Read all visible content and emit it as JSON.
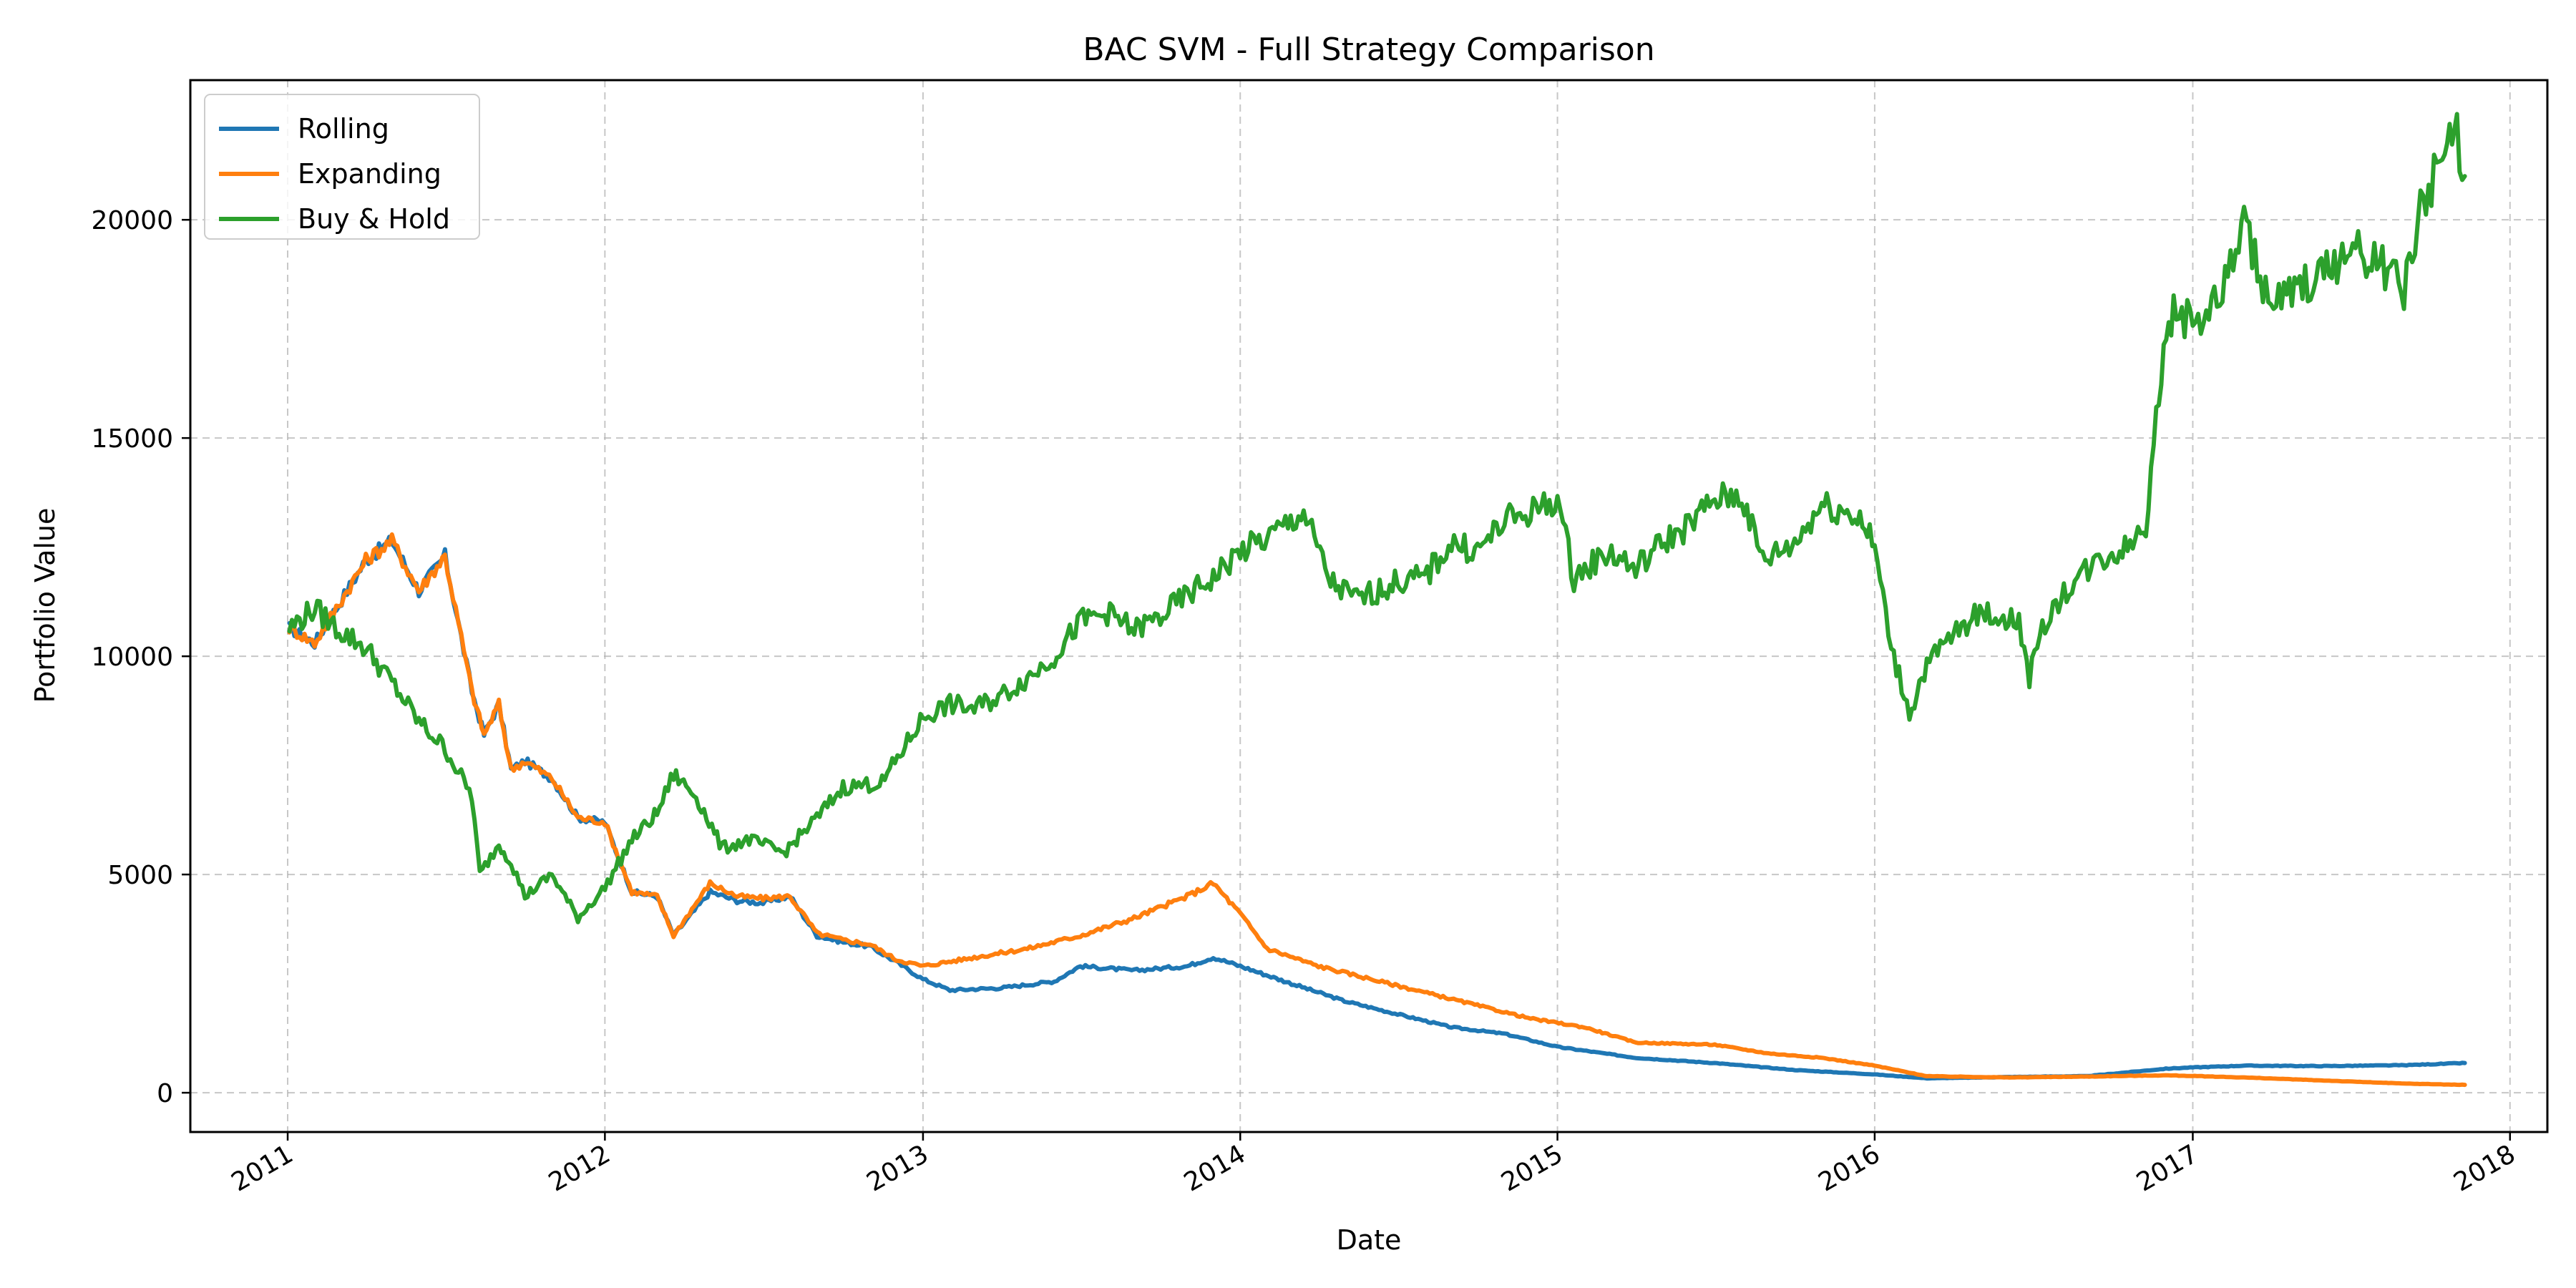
{
  "chart_data": {
    "type": "line",
    "title": "BAC SVM - Full Strategy Comparison",
    "xlabel": "Date",
    "ylabel": "Portfolio Value",
    "x_ticks": [
      "2011",
      "2012",
      "2013",
      "2014",
      "2015",
      "2016",
      "2017",
      "2018"
    ],
    "y_ticks": [
      0,
      5000,
      10000,
      15000,
      20000
    ],
    "xlim": [
      "2010-09-11",
      "2018-02-13"
    ],
    "ylim": [
      -900,
      23200
    ],
    "grid": true,
    "legend_position": "top-left",
    "series": [
      {
        "name": "Rolling",
        "color": "#1f77b4",
        "points": [
          [
            "2011-01-03",
            10650
          ],
          [
            "2011-02-01",
            10300
          ],
          [
            "2011-03-01",
            11200
          ],
          [
            "2011-04-01",
            12200
          ],
          [
            "2011-05-01",
            12650
          ],
          [
            "2011-06-01",
            11500
          ],
          [
            "2011-07-01",
            12300
          ],
          [
            "2011-08-01",
            9200
          ],
          [
            "2011-08-15",
            8200
          ],
          [
            "2011-09-01",
            8900
          ],
          [
            "2011-09-15",
            7400
          ],
          [
            "2011-10-01",
            7600
          ],
          [
            "2011-11-01",
            7200
          ],
          [
            "2011-12-01",
            6300
          ],
          [
            "2012-01-01",
            6200
          ],
          [
            "2012-02-01",
            4600
          ],
          [
            "2012-03-01",
            4500
          ],
          [
            "2012-03-20",
            3600
          ],
          [
            "2012-05-01",
            4600
          ],
          [
            "2012-06-01",
            4400
          ],
          [
            "2012-07-01",
            4350
          ],
          [
            "2012-08-01",
            4500
          ],
          [
            "2012-09-01",
            3600
          ],
          [
            "2012-10-01",
            3450
          ],
          [
            "2012-11-01",
            3350
          ],
          [
            "2012-12-01",
            3000
          ],
          [
            "2013-01-01",
            2600
          ],
          [
            "2013-02-01",
            2350
          ],
          [
            "2013-04-01",
            2400
          ],
          [
            "2013-06-01",
            2550
          ],
          [
            "2013-07-01",
            2900
          ],
          [
            "2013-09-01",
            2800
          ],
          [
            "2013-11-01",
            2900
          ],
          [
            "2013-12-01",
            3100
          ],
          [
            "2014-01-01",
            2900
          ],
          [
            "2014-03-01",
            2500
          ],
          [
            "2014-05-01",
            2100
          ],
          [
            "2014-07-01",
            1800
          ],
          [
            "2014-09-01",
            1500
          ],
          [
            "2014-11-01",
            1350
          ],
          [
            "2015-01-01",
            1050
          ],
          [
            "2015-04-01",
            800
          ],
          [
            "2015-07-01",
            680
          ],
          [
            "2015-10-01",
            520
          ],
          [
            "2016-01-01",
            420
          ],
          [
            "2016-03-01",
            330
          ],
          [
            "2016-06-01",
            360
          ],
          [
            "2016-09-01",
            380
          ],
          [
            "2016-12-01",
            550
          ],
          [
            "2017-01-01",
            580
          ],
          [
            "2017-03-01",
            620
          ],
          [
            "2017-06-01",
            610
          ],
          [
            "2017-09-01",
            630
          ],
          [
            "2017-11-10",
            680
          ]
        ]
      },
      {
        "name": "Expanding",
        "color": "#ff7f0e",
        "points": [
          [
            "2011-01-03",
            10650
          ],
          [
            "2011-02-01",
            10300
          ],
          [
            "2011-03-01",
            11200
          ],
          [
            "2011-04-01",
            12200
          ],
          [
            "2011-05-01",
            12650
          ],
          [
            "2011-06-01",
            11500
          ],
          [
            "2011-07-01",
            12300
          ],
          [
            "2011-08-01",
            9200
          ],
          [
            "2011-08-15",
            8200
          ],
          [
            "2011-09-01",
            8900
          ],
          [
            "2011-09-15",
            7400
          ],
          [
            "2011-10-01",
            7600
          ],
          [
            "2011-11-01",
            7200
          ],
          [
            "2011-12-01",
            6300
          ],
          [
            "2012-01-01",
            6200
          ],
          [
            "2012-02-01",
            4600
          ],
          [
            "2012-03-01",
            4500
          ],
          [
            "2012-03-20",
            3600
          ],
          [
            "2012-05-01",
            4800
          ],
          [
            "2012-06-01",
            4500
          ],
          [
            "2012-07-01",
            4450
          ],
          [
            "2012-08-01",
            4500
          ],
          [
            "2012-09-01",
            3650
          ],
          [
            "2012-10-01",
            3500
          ],
          [
            "2012-11-01",
            3400
          ],
          [
            "2012-12-01",
            3050
          ],
          [
            "2013-01-01",
            2900
          ],
          [
            "2013-03-01",
            3100
          ],
          [
            "2013-05-01",
            3300
          ],
          [
            "2013-07-01",
            3600
          ],
          [
            "2013-09-01",
            4000
          ],
          [
            "2013-11-01",
            4500
          ],
          [
            "2013-12-01",
            4800
          ],
          [
            "2014-01-01",
            4100
          ],
          [
            "2014-02-01",
            3300
          ],
          [
            "2014-04-01",
            2900
          ],
          [
            "2014-06-01",
            2600
          ],
          [
            "2014-08-01",
            2300
          ],
          [
            "2014-10-01",
            2000
          ],
          [
            "2014-12-01",
            1700
          ],
          [
            "2015-02-01",
            1500
          ],
          [
            "2015-04-01",
            1150
          ],
          [
            "2015-07-01",
            1100
          ],
          [
            "2015-09-01",
            900
          ],
          [
            "2015-11-01",
            800
          ],
          [
            "2016-01-01",
            620
          ],
          [
            "2016-03-01",
            380
          ],
          [
            "2016-06-01",
            350
          ],
          [
            "2016-09-01",
            370
          ],
          [
            "2016-12-01",
            400
          ],
          [
            "2017-03-01",
            350
          ],
          [
            "2017-06-01",
            280
          ],
          [
            "2017-09-01",
            210
          ],
          [
            "2017-11-10",
            180
          ]
        ]
      },
      {
        "name": "Buy & Hold",
        "color": "#2ca02c",
        "points": [
          [
            "2011-01-03",
            10650
          ],
          [
            "2011-02-01",
            11100
          ],
          [
            "2011-03-01",
            10600
          ],
          [
            "2011-04-01",
            10200
          ],
          [
            "2011-05-01",
            9400
          ],
          [
            "2011-06-01",
            8500
          ],
          [
            "2011-07-01",
            7900
          ],
          [
            "2011-08-01",
            6800
          ],
          [
            "2011-08-10",
            5000
          ],
          [
            "2011-09-01",
            5700
          ],
          [
            "2011-09-15",
            5300
          ],
          [
            "2011-10-01",
            4500
          ],
          [
            "2011-11-01",
            5000
          ],
          [
            "2011-12-01",
            4000
          ],
          [
            "2012-01-01",
            4700
          ],
          [
            "2012-02-01",
            5800
          ],
          [
            "2012-03-01",
            6400
          ],
          [
            "2012-03-20",
            7300
          ],
          [
            "2012-04-15",
            6800
          ],
          [
            "2012-05-15",
            5600
          ],
          [
            "2012-06-15",
            5800
          ],
          [
            "2012-07-25",
            5500
          ],
          [
            "2012-09-01",
            6300
          ],
          [
            "2012-10-01",
            7000
          ],
          [
            "2012-11-15",
            7100
          ],
          [
            "2013-01-01",
            8600
          ],
          [
            "2013-02-01",
            8900
          ],
          [
            "2013-03-01",
            8800
          ],
          [
            "2013-04-01",
            9100
          ],
          [
            "2013-05-01",
            9500
          ],
          [
            "2013-06-01",
            10000
          ],
          [
            "2013-07-01",
            10800
          ],
          [
            "2013-08-01",
            11000
          ],
          [
            "2013-09-01",
            10600
          ],
          [
            "2013-10-01",
            10900
          ],
          [
            "2013-11-01",
            11400
          ],
          [
            "2013-12-01",
            11800
          ],
          [
            "2014-01-01",
            12400
          ],
          [
            "2014-02-01",
            12700
          ],
          [
            "2014-03-15",
            13300
          ],
          [
            "2014-04-15",
            11700
          ],
          [
            "2014-05-15",
            11300
          ],
          [
            "2014-07-01",
            11700
          ],
          [
            "2014-08-01",
            11800
          ],
          [
            "2014-09-01",
            12600
          ],
          [
            "2014-10-01",
            12400
          ],
          [
            "2014-11-01",
            13100
          ],
          [
            "2014-12-01",
            13300
          ],
          [
            "2015-01-01",
            13600
          ],
          [
            "2015-01-20",
            11800
          ],
          [
            "2015-03-01",
            12400
          ],
          [
            "2015-04-01",
            12000
          ],
          [
            "2015-05-01",
            12600
          ],
          [
            "2015-06-01",
            13000
          ],
          [
            "2015-07-01",
            13600
          ],
          [
            "2015-08-01",
            13700
          ],
          [
            "2015-08-25",
            12200
          ],
          [
            "2015-10-01",
            12600
          ],
          [
            "2015-11-01",
            13500
          ],
          [
            "2015-12-15",
            13200
          ],
          [
            "2016-01-01",
            12500
          ],
          [
            "2016-01-20",
            10200
          ],
          [
            "2016-02-10",
            8700
          ],
          [
            "2016-03-01",
            9800
          ],
          [
            "2016-04-01",
            10500
          ],
          [
            "2016-05-01",
            11000
          ],
          [
            "2016-06-15",
            10800
          ],
          [
            "2016-06-27",
            9500
          ],
          [
            "2016-07-15",
            10800
          ],
          [
            "2016-08-15",
            11700
          ],
          [
            "2016-09-15",
            12200
          ],
          [
            "2016-10-15",
            12500
          ],
          [
            "2016-11-08",
            13000
          ],
          [
            "2016-11-20",
            15800
          ],
          [
            "2016-12-10",
            18000
          ],
          [
            "2017-01-01",
            17600
          ],
          [
            "2017-02-01",
            18200
          ],
          [
            "2017-03-01",
            19900
          ],
          [
            "2017-04-01",
            18000
          ],
          [
            "2017-05-01",
            18400
          ],
          [
            "2017-06-01",
            18800
          ],
          [
            "2017-07-01",
            19300
          ],
          [
            "2017-08-01",
            19100
          ],
          [
            "2017-09-01",
            18400
          ],
          [
            "2017-09-20",
            20200
          ],
          [
            "2017-10-15",
            21500
          ],
          [
            "2017-11-01",
            22000
          ],
          [
            "2017-11-10",
            21000
          ]
        ]
      }
    ]
  }
}
